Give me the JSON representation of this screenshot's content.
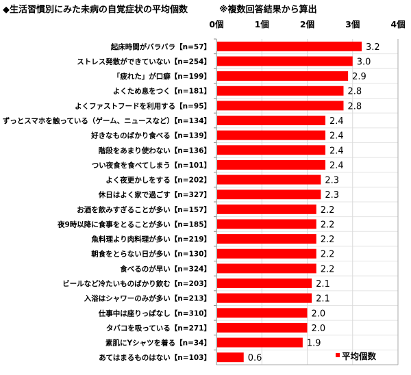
{
  "chart_data": {
    "type": "bar",
    "orientation": "horizontal",
    "title": "◆生活習慣別にみた未病の自覚症状の平均個数",
    "note": "※複数回答結果から算出",
    "categories": [
      "起床時間がバラバラ【n=57】",
      "ストレス発散ができていない【n=254】",
      "「疲れた」が口癖【n=199】",
      "よくため息をつく【n=181】",
      "よくファストフードを利用する【n=95】",
      "ずっとスマホを触っている（ゲーム、ニュースなど）【n=134】",
      "好きなものばかり食べる【n=139】",
      "階段をあまり使わない【n=136】",
      "つい夜食を食べてしまう【n=101】",
      "よく夜更かしをする【n=202】",
      "休日はよく家で過ごす【n=327】",
      "お酒を飲みすぎることが多い【n=157】",
      "夜9時以降に食事をとることが多い【n=185】",
      "魚料理より肉料理が多い【n=219】",
      "朝食をとらない日が多い【n=130】",
      "食べるのが早い【n=324】",
      "ビールなど冷たいものばかり飲む【n=203】",
      "入浴はシャワーのみが多い【n=213】",
      "仕事中は座りっぱなし【n=310】",
      "タバコを吸っている【n=271】",
      "素肌にYシャツを着る【n=34】",
      "あてはまるものはない【n=103】"
    ],
    "series": [
      {
        "name": "平均個数",
        "values": [
          3.2,
          3.0,
          2.9,
          2.8,
          2.8,
          2.4,
          2.4,
          2.4,
          2.4,
          2.3,
          2.3,
          2.2,
          2.2,
          2.2,
          2.2,
          2.2,
          2.1,
          2.1,
          2.0,
          2.0,
          1.9,
          0.6
        ],
        "labels": [
          "3.2",
          "3.0",
          "2.9",
          "2.8",
          "2.8",
          "2.4",
          "2.4",
          "2.4",
          "2.4",
          "2.3",
          "2.3",
          "2.2",
          "2.2",
          "2.2",
          "2.2",
          "2.2",
          "2.1",
          "2.1",
          "2.0",
          "2.0",
          "1.9",
          "0.6"
        ],
        "color": "#ff0000"
      }
    ],
    "xlim": [
      0,
      4
    ],
    "xticks": [
      "0個",
      "1個",
      "2個",
      "3個",
      "4個"
    ],
    "axis_position": "top",
    "grid": true,
    "legend": "bottom-right"
  }
}
